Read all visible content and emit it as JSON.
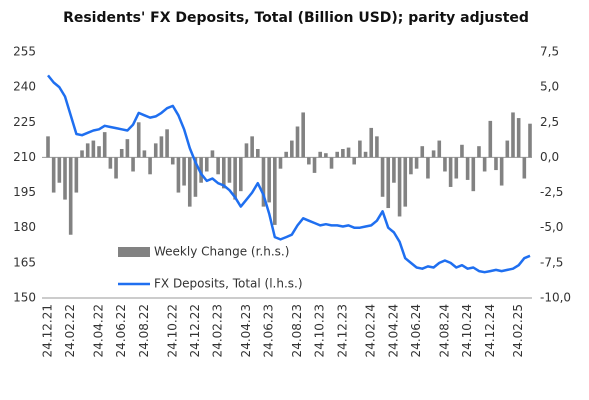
{
  "chart_data": {
    "type": "bar_line",
    "title": "Residents' FX Deposits, Total  (Billion USD); parity adjusted",
    "categories": [
      "24.12.21",
      null,
      null,
      null,
      "24.02.22",
      null,
      null,
      null,
      null,
      "24.04.22",
      null,
      null,
      null,
      "24.06.22",
      null,
      null,
      null,
      "24.08.22",
      null,
      null,
      null,
      null,
      "24.10.22",
      null,
      null,
      null,
      "24.12.22",
      null,
      null,
      null,
      "24.02.23",
      null,
      null,
      null,
      null,
      "24.04.23",
      null,
      null,
      null,
      "24.06.23",
      null,
      null,
      null,
      null,
      "24.08.23",
      null,
      null,
      null,
      "24.10.23",
      null,
      null,
      null,
      "24.12.23",
      null,
      null,
      null,
      null,
      "24.02.24",
      null,
      null,
      null,
      "24.04.24",
      null,
      null,
      null,
      "24.06.24",
      null,
      null,
      null,
      null,
      "24.08.24",
      null,
      null,
      null,
      "24.10.24",
      null,
      null,
      null,
      "24.12.24",
      null,
      null,
      null,
      null,
      "24.02.25",
      null,
      null
    ],
    "series": [
      {
        "name": "Weekly Change (r.h.s.)",
        "color": "#828282",
        "kind": "bar",
        "axis": "y2",
        "values": [
          1.5,
          -2.5,
          -1.8,
          -3,
          -5.5,
          -2.5,
          0.5,
          1,
          1.2,
          0.8,
          1.8,
          -0.8,
          -1.5,
          0.6,
          1.3,
          -1,
          2.5,
          0.5,
          -1.2,
          1,
          1.5,
          2,
          -0.5,
          -2.5,
          -2,
          -3.5,
          -2.8,
          -1.8,
          -1,
          0.5,
          -1.2,
          -2.2,
          -1.8,
          -3,
          -2.4,
          1,
          1.5,
          0.6,
          -3.5,
          -3.2,
          -4.8,
          -0.8,
          0.4,
          1.2,
          2.2,
          3.2,
          -0.5,
          -1.1,
          0.4,
          0.3,
          -0.8,
          0.4,
          0.6,
          0.7,
          -0.5,
          1.2,
          0.4,
          2.1,
          1.5,
          -2.8,
          -3.6,
          -1.8,
          -4.2,
          -3.5,
          -1.2,
          -0.8,
          0.8,
          -1.5,
          0.5,
          1.2,
          -1,
          -2.1,
          -1.5,
          0.9,
          -1.6,
          -2.4,
          0.8,
          -1,
          2.6,
          -0.9,
          -2,
          1.2,
          3.2,
          2.8,
          -1.5,
          2.4
        ]
      },
      {
        "name": "FX Deposits, Total (l.h.s.)",
        "color": "#1f6ff0",
        "kind": "line",
        "values": [
          245,
          242,
          240,
          236,
          228,
          220,
          219.5,
          220.5,
          221.5,
          222,
          223.5,
          223,
          222.5,
          222,
          221.5,
          224,
          229,
          228,
          227,
          227.5,
          229,
          231,
          232,
          228,
          222,
          214,
          208,
          203,
          200,
          201,
          199,
          198,
          196,
          193,
          189,
          192,
          195,
          199,
          194,
          186,
          176,
          175,
          176,
          177,
          181,
          184,
          183,
          182,
          181,
          181.5,
          181,
          181,
          180.5,
          181,
          180,
          180,
          180.5,
          181,
          183,
          187,
          180,
          178,
          174,
          167,
          165,
          163,
          162.5,
          163.5,
          163,
          165,
          166,
          165,
          163,
          164,
          162.5,
          163,
          161.5,
          161,
          161.5,
          162,
          161.5,
          162,
          162.5,
          164,
          167,
          168
        ]
      }
    ],
    "ylim": [
      150,
      255
    ],
    "yticks": [
      150,
      165,
      180,
      195,
      210,
      225,
      240,
      255
    ],
    "y2lim": [
      -10,
      7.5
    ],
    "y2ticks": [
      {
        "value": -10,
        "label": "-10,0"
      },
      {
        "value": -7.5,
        "label": "-7,5"
      },
      {
        "value": -5,
        "label": "-5,0"
      },
      {
        "value": -2.5,
        "label": "-2,5"
      },
      {
        "value": 0,
        "label": "0,0"
      },
      {
        "value": 2.5,
        "label": "2,5"
      },
      {
        "value": 5,
        "label": "5,0"
      },
      {
        "value": 7.5,
        "label": "7,5"
      }
    ],
    "grid": false,
    "legend": "lower left"
  }
}
